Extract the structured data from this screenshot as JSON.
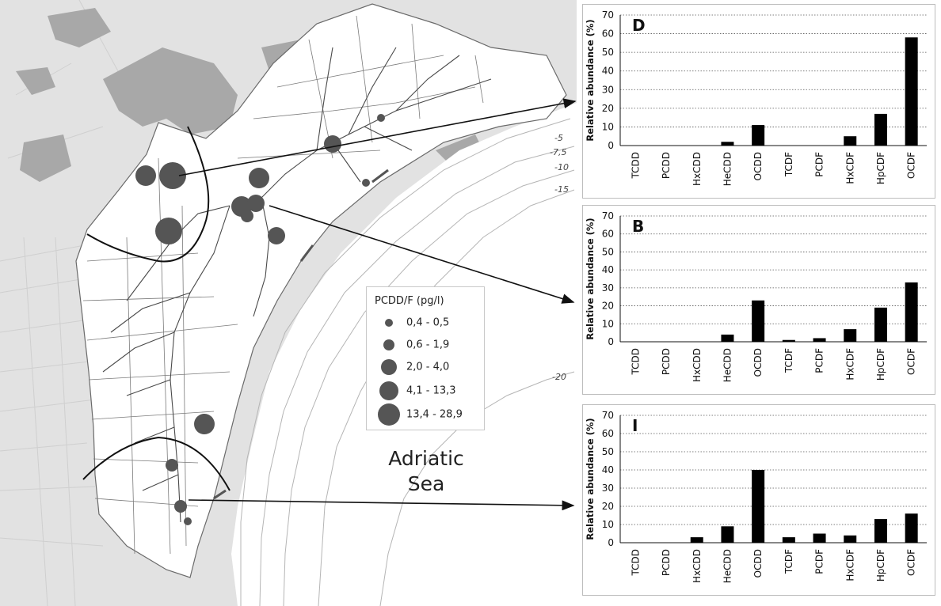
{
  "map": {
    "legend_title": "PCDD/F (pg/l)",
    "legend": [
      {
        "label": "0,4 - 0,5",
        "size": 1
      },
      {
        "label": "0,6 - 1,9",
        "size": 2
      },
      {
        "label": "2,0 - 4,0",
        "size": 3
      },
      {
        "label": "4,1 - 13,3",
        "size": 4
      },
      {
        "label": "13,4 - 28,9",
        "size": 5
      }
    ],
    "sea_line1": "Adriatic",
    "sea_line2": "Sea",
    "depth_labels": [
      "-5",
      "-7,5",
      "-10",
      "-15",
      "-20"
    ],
    "colors": {
      "land": "#dcdcdc",
      "urban": "#a9a9a9",
      "lagoon": "#ffffff",
      "sea": "#ffffff",
      "site": "#555555",
      "channel": "#555555"
    }
  },
  "chart_data": [
    {
      "type": "bar",
      "panel_label": "D",
      "categories": [
        "TCDD",
        "PCDD",
        "HxCDD",
        "HeCDD",
        "OCDD",
        "TCDF",
        "PCDF",
        "HxCDF",
        "HpCDF",
        "OCDF"
      ],
      "values": [
        0,
        0,
        0,
        2,
        11,
        0,
        0,
        5,
        17,
        58
      ],
      "ylabel": "Relative abundance (%)",
      "ylim": [
        0,
        70
      ],
      "yticks": [
        0,
        10,
        20,
        30,
        40,
        50,
        60,
        70
      ],
      "grid": true,
      "bar_color": "#000000"
    },
    {
      "type": "bar",
      "panel_label": "B",
      "categories": [
        "TCDD",
        "PCDD",
        "HxCDD",
        "HeCDD",
        "OCDD",
        "TCDF",
        "PCDF",
        "HxCDF",
        "HpCDF",
        "OCDF"
      ],
      "values": [
        0,
        0,
        0,
        4,
        23,
        1,
        2,
        7,
        19,
        33
      ],
      "ylabel": "Relative abundance (%)",
      "ylim": [
        0,
        70
      ],
      "yticks": [
        0,
        10,
        20,
        30,
        40,
        50,
        60,
        70
      ],
      "grid": true,
      "bar_color": "#000000"
    },
    {
      "type": "bar",
      "panel_label": "I",
      "categories": [
        "TCDD",
        "PCDD",
        "HxCDD",
        "HeCDD",
        "OCDD",
        "TCDF",
        "PCDF",
        "HxCDF",
        "HpCDF",
        "OCDF"
      ],
      "values": [
        0,
        0,
        3,
        9,
        40,
        3,
        5,
        4,
        13,
        16
      ],
      "ylabel": "Relative abundance (%)",
      "ylim": [
        0,
        70
      ],
      "yticks": [
        0,
        10,
        20,
        30,
        40,
        50,
        60,
        70
      ],
      "grid": true,
      "bar_color": "#000000"
    }
  ]
}
